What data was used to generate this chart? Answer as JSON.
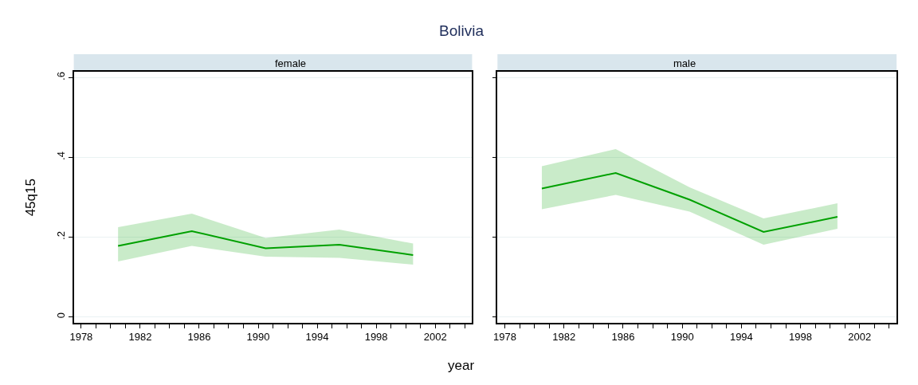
{
  "chart_data": [
    {
      "type": "line",
      "title": "female",
      "annotations": [
        "Bolivia"
      ],
      "xlabel": "year",
      "ylabel": "45q15",
      "x": [
        1980.5,
        1985.5,
        1990.5,
        1995.5,
        2000.5
      ],
      "series": [
        {
          "color": "#00a000",
          "values": [
            0.178,
            0.215,
            0.172,
            0.181,
            0.155
          ],
          "lower": [
            0.139,
            0.178,
            0.151,
            0.148,
            0.131
          ],
          "upper": [
            0.225,
            0.259,
            0.198,
            0.219,
            0.184
          ]
        }
      ],
      "xlim": [
        1977.5,
        2004.5
      ],
      "xticks": [
        1978,
        {
          "value": 1979,
          "label": null
        },
        {
          "value": 1980,
          "label": null
        },
        {
          "value": 1981,
          "label": null
        },
        1982,
        {
          "value": 1983,
          "label": null
        },
        {
          "value": 1984,
          "label": null
        },
        {
          "value": 1985,
          "label": null
        },
        1986,
        {
          "value": 1987,
          "label": null
        },
        {
          "value": 1988,
          "label": null
        },
        {
          "value": 1989,
          "label": null
        },
        1990,
        {
          "value": 1991,
          "label": null
        },
        {
          "value": 1992,
          "label": null
        },
        {
          "value": 1993,
          "label": null
        },
        1994,
        {
          "value": 1995,
          "label": null
        },
        {
          "value": 1996,
          "label": null
        },
        {
          "value": 1997,
          "label": null
        },
        1998,
        {
          "value": 1999,
          "label": null
        },
        {
          "value": 2000,
          "label": null
        },
        {
          "value": 2001,
          "label": null
        },
        2002,
        {
          "value": 2003,
          "label": null
        },
        {
          "value": 2004,
          "label": null
        }
      ],
      "ylim": [
        -0.015,
        0.615
      ],
      "yticks": [
        0,
        {
          "value": 0.2,
          "label": ".2"
        },
        {
          "value": 0.4,
          "label": ".4"
        },
        {
          "value": 0.6,
          "label": ".6"
        }
      ],
      "grid": "y"
    },
    {
      "type": "line",
      "title": "male",
      "x": [
        1980.5,
        1985.5,
        1990.5,
        1995.5,
        2000.5
      ],
      "series": [
        {
          "color": "#00a000",
          "values": [
            0.322,
            0.361,
            0.294,
            0.213,
            0.251
          ],
          "lower": [
            0.27,
            0.306,
            0.264,
            0.181,
            0.221
          ],
          "upper": [
            0.378,
            0.421,
            0.325,
            0.247,
            0.285
          ]
        }
      ],
      "xlim": [
        1977.5,
        2004.5
      ],
      "xticks": [
        1978,
        {
          "value": 1979,
          "label": null
        },
        {
          "value": 1980,
          "label": null
        },
        {
          "value": 1981,
          "label": null
        },
        1982,
        {
          "value": 1983,
          "label": null
        },
        {
          "value": 1984,
          "label": null
        },
        {
          "value": 1985,
          "label": null
        },
        1986,
        {
          "value": 1987,
          "label": null
        },
        {
          "value": 1988,
          "label": null
        },
        {
          "value": 1989,
          "label": null
        },
        1990,
        {
          "value": 1991,
          "label": null
        },
        {
          "value": 1992,
          "label": null
        },
        {
          "value": 1993,
          "label": null
        },
        1994,
        {
          "value": 1995,
          "label": null
        },
        {
          "value": 1996,
          "label": null
        },
        {
          "value": 1997,
          "label": null
        },
        1998,
        {
          "value": 1999,
          "label": null
        },
        {
          "value": 2000,
          "label": null
        },
        {
          "value": 2001,
          "label": null
        },
        2002,
        {
          "value": 2003,
          "label": null
        },
        {
          "value": 2004,
          "label": null
        }
      ],
      "ylim": [
        -0.015,
        0.615
      ],
      "yticks": [
        0,
        0.2,
        0.4,
        0.6
      ],
      "grid": "y",
      "tick_labels": "x"
    }
  ]
}
